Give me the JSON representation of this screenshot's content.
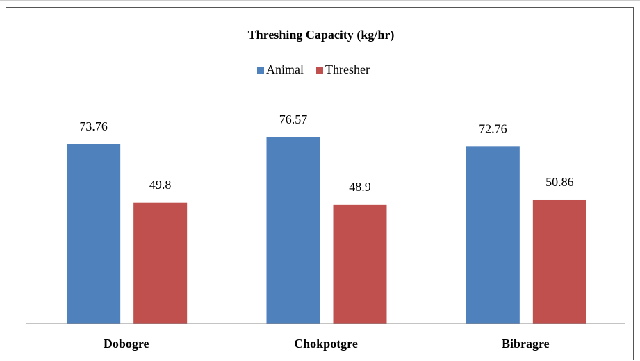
{
  "chart_data": {
    "type": "bar",
    "title": "Threshing Capacity (kg/hr)",
    "categories": [
      "Dobogre",
      "Chokpotgre",
      "Bibragre"
    ],
    "series": [
      {
        "name": "Animal",
        "color": "#4f81bd",
        "values": [
          73.76,
          76.57,
          72.76
        ]
      },
      {
        "name": "Thresher",
        "color": "#c0504d",
        "values": [
          49.8,
          48.9,
          50.86
        ]
      }
    ],
    "ylim": [
      0,
      90
    ],
    "legend": "top"
  }
}
